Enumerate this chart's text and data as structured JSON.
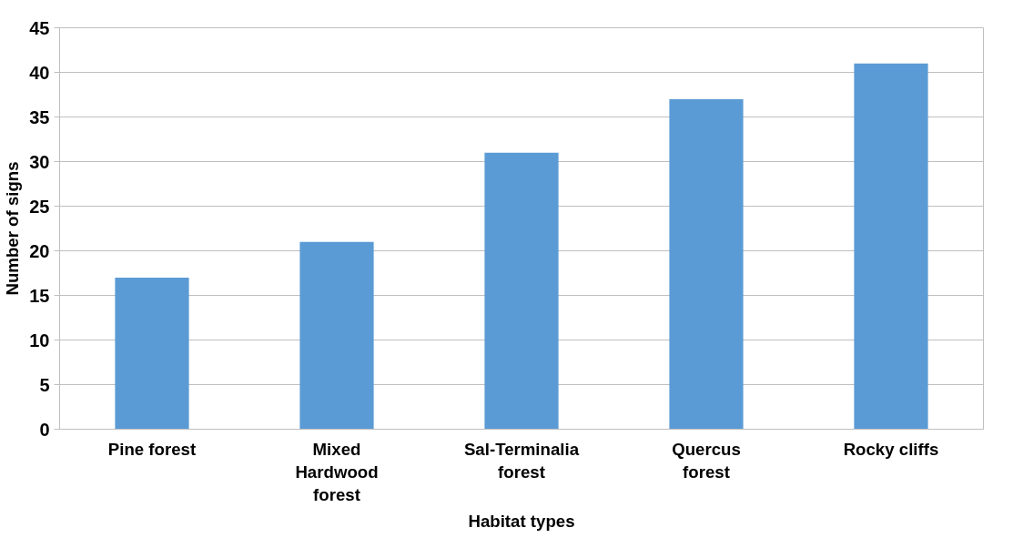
{
  "chart_data": {
    "type": "bar",
    "xlabel": "Habitat types",
    "ylabel": "Number of signs",
    "categories": [
      "Pine forest",
      "Mixed Hardwood forest",
      "Sal-Terminalia forest",
      "Quercus forest",
      "Rocky cliffs"
    ],
    "values": [
      17,
      21,
      31,
      37,
      41
    ],
    "color": "#5b9bd5",
    "ylim": [
      0,
      45
    ],
    "yticks": [
      0,
      5,
      10,
      15,
      20,
      25,
      30,
      35,
      40,
      45
    ],
    "grid": "y"
  }
}
